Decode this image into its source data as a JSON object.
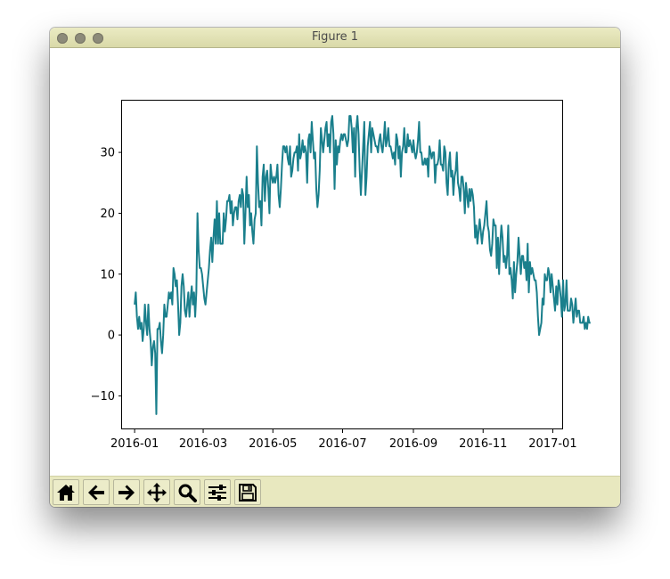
{
  "window": {
    "title": "Figure 1"
  },
  "toolbar": {
    "buttons": [
      {
        "name": "home-button",
        "icon": "home-icon"
      },
      {
        "name": "back-button",
        "icon": "arrow-left-icon"
      },
      {
        "name": "forward-button",
        "icon": "arrow-right-icon"
      },
      {
        "name": "pan-button",
        "icon": "move-icon"
      },
      {
        "name": "zoom-button",
        "icon": "magnifier-icon"
      },
      {
        "name": "configure-subplots-button",
        "icon": "sliders-icon"
      },
      {
        "name": "save-button",
        "icon": "floppy-disk-icon"
      }
    ]
  },
  "colors": {
    "line": "#1a7f8c",
    "titlebar": "#e2e2b4",
    "toolbar": "#e8e8bf"
  },
  "chart_data": {
    "type": "line",
    "title": "",
    "xlabel": "",
    "ylabel": "",
    "grid": false,
    "xlim": [
      "2015-12-21",
      "2017-01-10"
    ],
    "ylim": [
      -15.5,
      38.5
    ],
    "xticks": [
      "2016-01",
      "2016-03",
      "2016-05",
      "2016-07",
      "2016-09",
      "2016-11",
      "2017-01"
    ],
    "yticks": [
      -10,
      0,
      10,
      20,
      30
    ],
    "series": [
      {
        "x_start": "2016-01-01",
        "x_step_days": 1,
        "values": [
          5,
          7,
          3,
          1,
          3,
          1,
          2,
          -1,
          1,
          5,
          2,
          0,
          5,
          1,
          -1,
          -5,
          -2,
          -1,
          -3,
          -13,
          1,
          1,
          2,
          -1,
          -3,
          0,
          5,
          3,
          3,
          5,
          7,
          6,
          7,
          5,
          11,
          10,
          8,
          9,
          5,
          0,
          2,
          8,
          10,
          8,
          4,
          3,
          5,
          7,
          3,
          6,
          8,
          5,
          7,
          3,
          7,
          20,
          14,
          11,
          11,
          10,
          8,
          6,
          5,
          7,
          9,
          11,
          14,
          16,
          12,
          16,
          19,
          15,
          22,
          15,
          20,
          15,
          15,
          15,
          20,
          17,
          19,
          22,
          22,
          23,
          20,
          22,
          18,
          20,
          21,
          21,
          19,
          22,
          23,
          21,
          24,
          23,
          15,
          20,
          26,
          21,
          23,
          18,
          20,
          17,
          15,
          19,
          20,
          31,
          25,
          21,
          22,
          18,
          26,
          28,
          22,
          26,
          27,
          24,
          20,
          28,
          26,
          25,
          26,
          25,
          26,
          28,
          23,
          21,
          24,
          28,
          31,
          31,
          30,
          31,
          29,
          28,
          31,
          26,
          27,
          29,
          30,
          30,
          31,
          27,
          33,
          29,
          30,
          32,
          30,
          31,
          30,
          25,
          32,
          33,
          30,
          35,
          32,
          29,
          30,
          24,
          21,
          23,
          27,
          34,
          32,
          30,
          32,
          34,
          35,
          31,
          33,
          30,
          35,
          36,
          33,
          24,
          32,
          28,
          31,
          30,
          32,
          33,
          32,
          33,
          33,
          32,
          31,
          32,
          36,
          36,
          34,
          30,
          34,
          26,
          34,
          36,
          33,
          27,
          23,
          27,
          31,
          35,
          23,
          26,
          31,
          33,
          35,
          30,
          34,
          33,
          32,
          31,
          31,
          30,
          32,
          33,
          31,
          30,
          32,
          35,
          31,
          32,
          34,
          31,
          31,
          30,
          29,
          30,
          28,
          33,
          32,
          29,
          31,
          26,
          30,
          31,
          34,
          30,
          30,
          33,
          31,
          32,
          31,
          30,
          32,
          30,
          29,
          30,
          32,
          35,
          30,
          30,
          28,
          28,
          29,
          28,
          29,
          26,
          31,
          30,
          29,
          30,
          30,
          25,
          28,
          28,
          29,
          32,
          28,
          28,
          27,
          31,
          30,
          25,
          23,
          28,
          30,
          26,
          27,
          23,
          26,
          27,
          30,
          25,
          24,
          22,
          26,
          26,
          24,
          20,
          25,
          23,
          21,
          24,
          22,
          24,
          23,
          21,
          16,
          18,
          15,
          17,
          19,
          17,
          15,
          17,
          18,
          20,
          22,
          18,
          17,
          14,
          13,
          15,
          19,
          18,
          18,
          11,
          16,
          10,
          15,
          18,
          16,
          12,
          13,
          11,
          13,
          18,
          10,
          11,
          9,
          6,
          12,
          7,
          10,
          12,
          16,
          13,
          10,
          13,
          13,
          11,
          12,
          9,
          15,
          7,
          12,
          10,
          11,
          10,
          9,
          9,
          7,
          3,
          0,
          1,
          2,
          6,
          5,
          10,
          9,
          9,
          11,
          10,
          7,
          10,
          8,
          6,
          4,
          8,
          5,
          9,
          8,
          6,
          3,
          9,
          4,
          5,
          9,
          4,
          4,
          4,
          6,
          5,
          2,
          4,
          6,
          3,
          4,
          4,
          2,
          2,
          2,
          3,
          1,
          2,
          1,
          3,
          2,
          2
        ]
      }
    ]
  }
}
